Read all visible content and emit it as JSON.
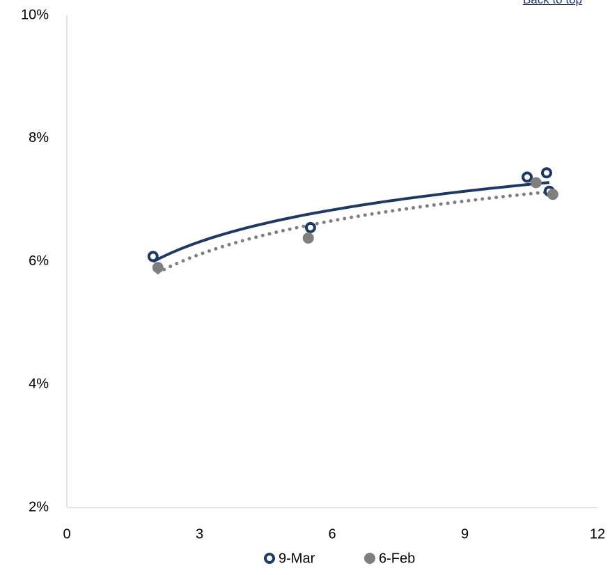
{
  "link": {
    "text": "Back to top"
  },
  "chart_data": {
    "type": "scatter",
    "series": [
      {
        "name": "9-Mar",
        "color": "#1f3864",
        "marker": "open-circle",
        "trendline": "logarithmic",
        "trendline_style": "solid",
        "x": [
          1.95,
          5.51,
          10.41,
          10.85,
          10.91
        ],
        "values": [
          6.08,
          6.55,
          7.37,
          7.44,
          7.14
        ]
      },
      {
        "name": "6-Feb",
        "color": "#7f7f7f",
        "marker": "filled-circle",
        "trendline": "logarithmic",
        "trendline_style": "dotted",
        "x": [
          2.06,
          5.46,
          10.61,
          10.99
        ],
        "values": [
          5.9,
          6.38,
          7.28,
          7.09
        ]
      }
    ],
    "xlim": [
      0,
      12
    ],
    "xticks": [
      0,
      3,
      6,
      9,
      12
    ],
    "ylim": [
      2,
      10
    ],
    "yticks": [
      {
        "value": 2,
        "label": "2%"
      },
      {
        "value": 4,
        "label": "4%"
      },
      {
        "value": 6,
        "label": "6%"
      },
      {
        "value": 8,
        "label": "8%"
      },
      {
        "value": 10,
        "label": "10%"
      }
    ],
    "grid": false,
    "legend": "bottom"
  }
}
